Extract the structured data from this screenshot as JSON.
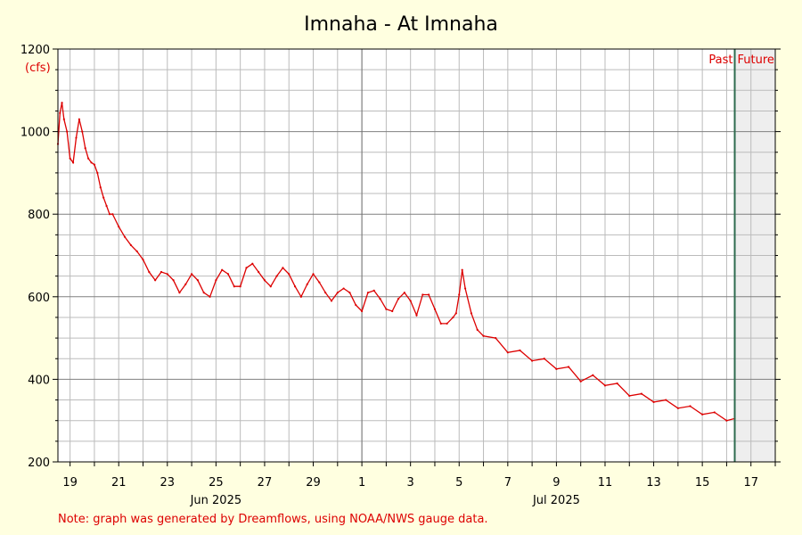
{
  "chart_data": {
    "type": "line",
    "title": "Imnaha - At Imnaha",
    "ylabel": "(cfs)",
    "ylim": [
      200,
      1200
    ],
    "y_ticks": [
      200,
      400,
      600,
      800,
      1000,
      1200
    ],
    "xlim": [
      "2025-06-18T12:00",
      "2025-07-18T00:00"
    ],
    "x_ticks": [
      {
        "date": "2025-06-19",
        "label": "19"
      },
      {
        "date": "2025-06-21",
        "label": "21"
      },
      {
        "date": "2025-06-23",
        "label": "23"
      },
      {
        "date": "2025-06-25",
        "label": "25"
      },
      {
        "date": "2025-06-27",
        "label": "27"
      },
      {
        "date": "2025-06-29",
        "label": "29"
      },
      {
        "date": "2025-07-01",
        "label": "1"
      },
      {
        "date": "2025-07-03",
        "label": "3"
      },
      {
        "date": "2025-07-05",
        "label": "5"
      },
      {
        "date": "2025-07-07",
        "label": "7"
      },
      {
        "date": "2025-07-09",
        "label": "9"
      },
      {
        "date": "2025-07-11",
        "label": "11"
      },
      {
        "date": "2025-07-13",
        "label": "13"
      },
      {
        "date": "2025-07-15",
        "label": "15"
      },
      {
        "date": "2025-07-17",
        "label": "17"
      }
    ],
    "month_labels": [
      {
        "date": "2025-06-25",
        "label": "Jun 2025"
      },
      {
        "date": "2025-07-09",
        "label": "Jul 2025"
      }
    ],
    "month_boundary": "2025-07-01",
    "now": "2025-07-16T08:00",
    "past_label": "Past",
    "future_label": "Future",
    "grid": true,
    "colors": {
      "line": "#DD0000",
      "now_line": "#2E6B4F",
      "future_bg": "#EEEEEE",
      "grid": "#BBBBBB",
      "background": "#FFFFE0"
    },
    "series": [
      {
        "x": [
          "2025-06-18T12:00",
          "2025-06-18T14:00",
          "2025-06-18T16:00",
          "2025-06-18T18:00",
          "2025-06-18T21:00",
          "2025-06-19T00:00",
          "2025-06-19T03:00",
          "2025-06-19T06:00",
          "2025-06-19T09:00",
          "2025-06-19T12:00",
          "2025-06-19T15:00",
          "2025-06-19T18:00",
          "2025-06-19T21:00",
          "2025-06-20T00:00",
          "2025-06-20T03:00",
          "2025-06-20T06:00",
          "2025-06-20T09:00",
          "2025-06-20T12:00",
          "2025-06-20T15:00",
          "2025-06-20T18:00",
          "2025-06-21T00:00",
          "2025-06-21T06:00",
          "2025-06-21T12:00",
          "2025-06-21T18:00",
          "2025-06-22T00:00",
          "2025-06-22T06:00",
          "2025-06-22T12:00",
          "2025-06-22T18:00",
          "2025-06-23T00:00",
          "2025-06-23T06:00",
          "2025-06-23T12:00",
          "2025-06-23T18:00",
          "2025-06-24T00:00",
          "2025-06-24T06:00",
          "2025-06-24T12:00",
          "2025-06-24T18:00",
          "2025-06-25T00:00",
          "2025-06-25T06:00",
          "2025-06-25T12:00",
          "2025-06-25T18:00",
          "2025-06-26T00:00",
          "2025-06-26T06:00",
          "2025-06-26T12:00",
          "2025-06-26T18:00",
          "2025-06-27T00:00",
          "2025-06-27T06:00",
          "2025-06-27T12:00",
          "2025-06-27T18:00",
          "2025-06-28T00:00",
          "2025-06-28T06:00",
          "2025-06-28T12:00",
          "2025-06-28T18:00",
          "2025-06-29T00:00",
          "2025-06-29T06:00",
          "2025-06-29T12:00",
          "2025-06-29T18:00",
          "2025-06-30T00:00",
          "2025-06-30T06:00",
          "2025-06-30T12:00",
          "2025-06-30T18:00",
          "2025-07-01T00:00",
          "2025-07-01T06:00",
          "2025-07-01T12:00",
          "2025-07-01T18:00",
          "2025-07-02T00:00",
          "2025-07-02T06:00",
          "2025-07-02T12:00",
          "2025-07-02T18:00",
          "2025-07-03T00:00",
          "2025-07-03T06:00",
          "2025-07-03T12:00",
          "2025-07-03T18:00",
          "2025-07-04T00:00",
          "2025-07-04T06:00",
          "2025-07-04T12:00",
          "2025-07-04T18:00",
          "2025-07-04T21:00",
          "2025-07-05T00:00",
          "2025-07-05T03:00",
          "2025-07-05T06:00",
          "2025-07-05T12:00",
          "2025-07-05T18:00",
          "2025-07-06T00:00",
          "2025-07-06T12:00",
          "2025-07-07T00:00",
          "2025-07-07T12:00",
          "2025-07-08T00:00",
          "2025-07-08T12:00",
          "2025-07-09T00:00",
          "2025-07-09T12:00",
          "2025-07-10T00:00",
          "2025-07-10T12:00",
          "2025-07-11T00:00",
          "2025-07-11T12:00",
          "2025-07-12T00:00",
          "2025-07-12T12:00",
          "2025-07-13T00:00",
          "2025-07-13T12:00",
          "2025-07-14T00:00",
          "2025-07-14T12:00",
          "2025-07-15T00:00",
          "2025-07-15T12:00",
          "2025-07-16T00:00",
          "2025-07-16T08:00"
        ],
        "y": [
          970,
          1045,
          1070,
          1030,
          1000,
          935,
          925,
          985,
          1030,
          1000,
          960,
          935,
          925,
          920,
          900,
          865,
          840,
          820,
          800,
          800,
          770,
          745,
          725,
          710,
          690,
          660,
          640,
          660,
          655,
          640,
          610,
          630,
          655,
          640,
          610,
          600,
          640,
          665,
          655,
          625,
          625,
          670,
          680,
          660,
          640,
          625,
          650,
          670,
          655,
          625,
          600,
          630,
          655,
          635,
          610,
          590,
          610,
          620,
          610,
          580,
          565,
          610,
          615,
          595,
          570,
          565,
          595,
          610,
          590,
          555,
          605,
          605,
          570,
          535,
          535,
          550,
          560,
          605,
          665,
          620,
          560,
          520,
          505,
          500,
          465,
          470,
          445,
          450,
          425,
          430,
          395,
          410,
          385,
          390,
          360,
          365,
          345,
          350,
          330,
          335,
          315,
          320,
          300,
          305
        ]
      }
    ]
  },
  "note": "Note: graph was generated by Dreamflows, using NOAA/NWS gauge data."
}
